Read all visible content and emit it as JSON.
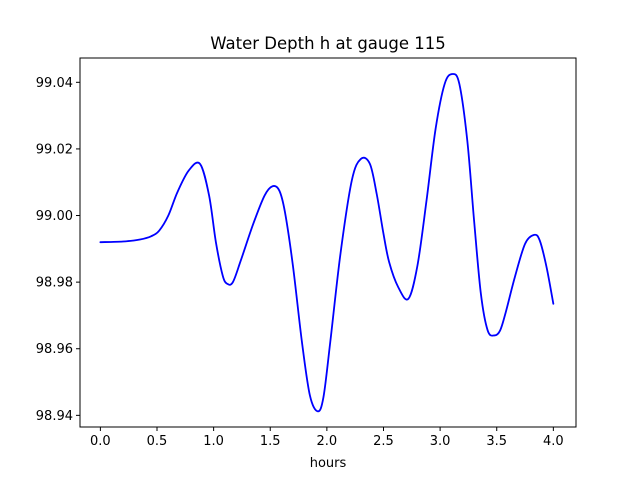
{
  "chart_data": {
    "type": "line",
    "title": "Water Depth h at gauge 115",
    "xlabel": "hours",
    "ylabel": "",
    "xlim": [
      -0.18,
      4.2
    ],
    "ylim": [
      98.9365,
      99.0473
    ],
    "xticks": [
      0.0,
      0.5,
      1.0,
      1.5,
      2.0,
      2.5,
      3.0,
      3.5,
      4.0
    ],
    "xtick_labels": [
      "0.0",
      "0.5",
      "1.0",
      "1.5",
      "2.0",
      "2.5",
      "3.0",
      "3.5",
      "4.0"
    ],
    "yticks": [
      98.94,
      98.96,
      98.98,
      99.0,
      99.02,
      99.04
    ],
    "ytick_labels": [
      "98.94",
      "98.96",
      "98.98",
      "99.00",
      "99.02",
      "99.04"
    ],
    "grid": false,
    "colors": {
      "line": "#0000ff"
    },
    "series": [
      {
        "x": [
          0.0,
          0.2,
          0.35,
          0.45,
          0.52,
          0.6,
          0.68,
          0.78,
          0.88,
          0.96,
          1.02,
          1.08,
          1.12,
          1.17,
          1.24,
          1.35,
          1.45,
          1.52,
          1.58,
          1.63,
          1.7,
          1.78,
          1.85,
          1.92,
          1.97,
          2.03,
          2.12,
          2.22,
          2.3,
          2.38,
          2.44,
          2.5,
          2.55,
          2.63,
          2.72,
          2.8,
          2.88,
          2.96,
          3.04,
          3.11,
          3.17,
          3.24,
          3.3,
          3.36,
          3.42,
          3.48,
          3.53,
          3.58,
          3.66,
          3.75,
          3.83,
          3.88,
          3.94,
          4.0
        ],
        "y": [
          98.992,
          98.9922,
          98.9928,
          98.9938,
          98.9955,
          99.0,
          99.007,
          99.0135,
          99.0155,
          99.006,
          98.992,
          98.982,
          98.9795,
          98.98,
          98.9865,
          98.9975,
          99.006,
          99.0088,
          99.0075,
          99.001,
          98.985,
          98.962,
          98.946,
          98.9412,
          98.9455,
          98.962,
          98.9885,
          99.0105,
          99.017,
          99.0155,
          99.0065,
          98.9945,
          98.986,
          98.9785,
          98.975,
          98.985,
          99.0045,
          99.026,
          99.0395,
          99.0425,
          99.0395,
          99.0225,
          98.9985,
          98.9765,
          98.9655,
          98.964,
          98.9655,
          98.971,
          98.9815,
          98.9915,
          98.9942,
          98.9925,
          98.9845,
          98.9735
        ]
      }
    ]
  }
}
